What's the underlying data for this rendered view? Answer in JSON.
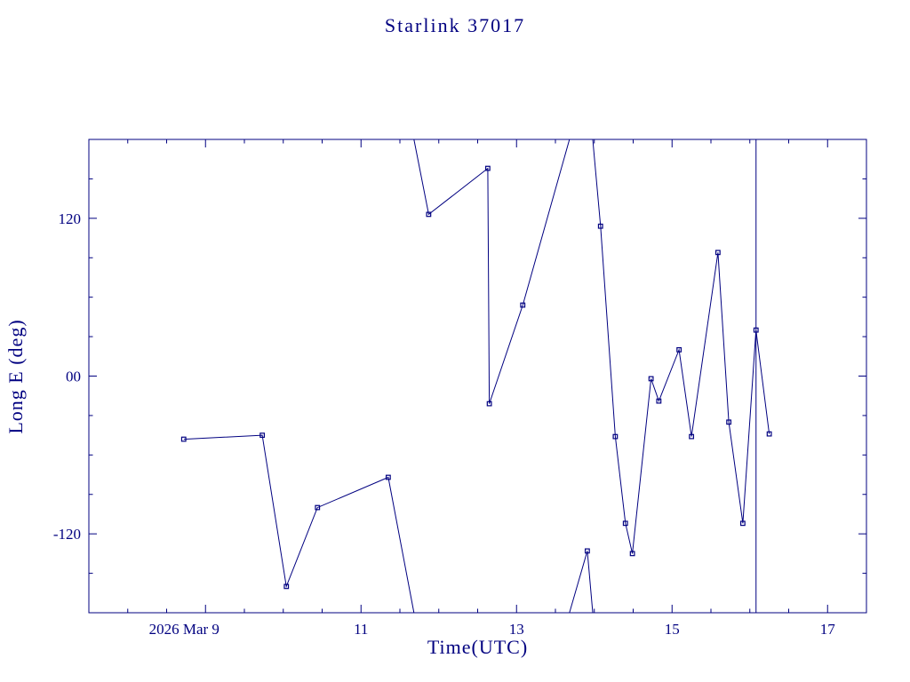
{
  "chart_data": {
    "type": "line",
    "title": "Starlink 37017",
    "xlabel": "Time(UTC)",
    "ylabel": "Long E (deg)",
    "accent_color": "#000080",
    "background_color": "#ffffff",
    "grid": false,
    "legend": "none",
    "xlim": [
      7.5,
      17.5
    ],
    "ylim": [
      -180,
      180
    ],
    "x_minor_step": 0.5,
    "y_minor_step": 30,
    "x_ticks": [
      {
        "day": 9,
        "label": "2026 Mar 9"
      },
      {
        "day": 11,
        "label": "11"
      },
      {
        "day": 13,
        "label": "13"
      },
      {
        "day": 15,
        "label": "15"
      },
      {
        "day": 17,
        "label": "17"
      }
    ],
    "y_ticks": [
      {
        "value": 120,
        "label": "120"
      },
      {
        "value": 0,
        "label": "00"
      },
      {
        "value": -120,
        "label": "-120"
      }
    ],
    "points": [
      [
        8.72,
        -48
      ],
      [
        9.73,
        -45
      ],
      [
        10.04,
        -160
      ],
      [
        10.44,
        -100
      ],
      [
        11.35,
        -77
      ],
      [
        11.87,
        123
      ],
      [
        12.63,
        158
      ],
      [
        12.65,
        -21
      ],
      [
        13.08,
        54
      ],
      [
        13.91,
        -133
      ],
      [
        14.08,
        114
      ],
      [
        14.27,
        -46
      ],
      [
        14.4,
        -112
      ],
      [
        14.49,
        -135
      ],
      [
        14.73,
        -2
      ],
      [
        14.83,
        -19
      ],
      [
        15.09,
        20
      ],
      [
        15.25,
        -46
      ],
      [
        15.59,
        94
      ],
      [
        15.73,
        -35
      ],
      [
        15.91,
        -112
      ],
      [
        16.08,
        35
      ],
      [
        16.25,
        -44
      ]
    ],
    "segments": [
      [
        [
          8.72,
          -48
        ],
        [
          9.73,
          -45
        ],
        [
          10.04,
          -160
        ],
        [
          10.44,
          -100
        ],
        [
          11.35,
          -77
        ],
        [
          11.68,
          -180
        ]
      ],
      [
        [
          11.68,
          180
        ],
        [
          11.87,
          123
        ],
        [
          12.63,
          158
        ],
        [
          12.65,
          -21
        ],
        [
          13.08,
          54
        ],
        [
          13.68,
          180
        ]
      ],
      [
        [
          13.68,
          -180
        ],
        [
          13.91,
          -133
        ],
        [
          13.98,
          -180
        ]
      ],
      [
        [
          13.98,
          180
        ],
        [
          14.08,
          114
        ],
        [
          14.27,
          -46
        ],
        [
          14.4,
          -112
        ],
        [
          14.49,
          -135
        ],
        [
          14.73,
          -2
        ],
        [
          14.83,
          -19
        ],
        [
          15.09,
          20
        ],
        [
          15.25,
          -46
        ],
        [
          15.59,
          94
        ],
        [
          15.73,
          -35
        ],
        [
          15.91,
          -112
        ],
        [
          16.08,
          35
        ],
        [
          16.25,
          -44
        ]
      ]
    ],
    "vertical_line_day": 16.08
  }
}
